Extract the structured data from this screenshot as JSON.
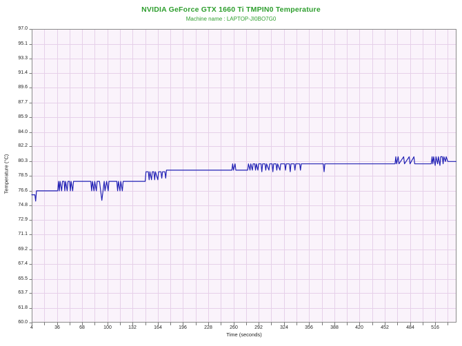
{
  "header": {
    "title": "NVIDIA GeForce GTX 1660 Ti TMPIN0 Temperature",
    "subtitle": "Machine name : LAPTOP-JI0BO7G0"
  },
  "chart_data": {
    "type": "line",
    "title": "NVIDIA GeForce GTX 1660 Ti TMPIN0 Temperature",
    "subtitle": "Machine name : LAPTOP-JI0BO7G0",
    "xlabel": "Time (seconds)",
    "ylabel": "Temperature (°C)",
    "xlim": [
      4,
      543
    ],
    "ylim": [
      60.0,
      97.0
    ],
    "x_tick_labels": [
      4,
      36,
      68,
      100,
      132,
      164,
      196,
      228,
      260,
      292,
      324,
      356,
      388,
      420,
      452,
      484,
      516
    ],
    "y_tick_labels": [
      97.0,
      95.1,
      93.3,
      91.4,
      89.6,
      87.7,
      85.9,
      84.0,
      82.2,
      80.3,
      78.5,
      76.6,
      74.8,
      72.9,
      71.1,
      69.2,
      67.4,
      65.5,
      63.7,
      61.8,
      60.0
    ],
    "x_grid_step_seconds": 16,
    "grid_on": true,
    "legend": "none",
    "colors": {
      "line": "#2020b4",
      "plot_background": "#faf3fb",
      "grid": "#e6d0e9",
      "plot_border": "#8a8a8a",
      "title_green": "#2e9e2e",
      "tick_text": "#222222"
    },
    "series": [
      {
        "name": "TMPIN0",
        "points": [
          [
            4,
            76.1
          ],
          [
            8,
            76.1
          ],
          [
            9,
            75.3
          ],
          [
            10,
            76.6
          ],
          [
            37,
            76.6
          ],
          [
            38,
            77.8
          ],
          [
            39,
            76.6
          ],
          [
            40,
            77.8
          ],
          [
            42,
            76.6
          ],
          [
            43,
            77.8
          ],
          [
            45,
            77.8
          ],
          [
            46,
            76.6
          ],
          [
            47,
            77.8
          ],
          [
            49,
            76.6
          ],
          [
            50,
            77.8
          ],
          [
            52,
            77.8
          ],
          [
            53,
            76.6
          ],
          [
            54,
            77.8
          ],
          [
            56,
            76.6
          ],
          [
            57,
            77.8
          ],
          [
            79,
            77.8
          ],
          [
            80,
            76.6
          ],
          [
            81,
            77.8
          ],
          [
            83,
            76.6
          ],
          [
            84,
            77.8
          ],
          [
            86,
            76.6
          ],
          [
            87,
            77.8
          ],
          [
            90,
            77.8
          ],
          [
            93,
            75.4
          ],
          [
            96,
            77.8
          ],
          [
            97,
            76.6
          ],
          [
            99,
            77.8
          ],
          [
            101,
            76.6
          ],
          [
            102,
            77.8
          ],
          [
            112,
            77.8
          ],
          [
            113,
            76.6
          ],
          [
            114,
            77.8
          ],
          [
            116,
            76.6
          ],
          [
            117,
            77.8
          ],
          [
            119,
            76.6
          ],
          [
            120,
            77.8
          ],
          [
            148,
            77.8
          ],
          [
            149,
            79.0
          ],
          [
            152,
            79.0
          ],
          [
            153,
            78.0
          ],
          [
            154,
            79.0
          ],
          [
            156,
            78.0
          ],
          [
            157,
            79.0
          ],
          [
            159,
            79.0
          ],
          [
            160,
            78.0
          ],
          [
            161,
            79.0
          ],
          [
            164,
            78.0
          ],
          [
            165,
            79.0
          ],
          [
            168,
            79.0
          ],
          [
            169,
            78.2
          ],
          [
            170,
            79.0
          ],
          [
            173,
            79.0
          ],
          [
            174,
            78.2
          ],
          [
            175,
            79.2
          ],
          [
            258,
            79.2
          ],
          [
            259,
            80.0
          ],
          [
            260,
            79.2
          ],
          [
            262,
            80.0
          ],
          [
            263,
            79.2
          ],
          [
            278,
            79.2
          ],
          [
            279,
            80.0
          ],
          [
            281,
            79.2
          ],
          [
            282,
            80.0
          ],
          [
            284,
            79.2
          ],
          [
            285,
            80.0
          ],
          [
            287,
            80.0
          ],
          [
            288,
            79.2
          ],
          [
            289,
            80.0
          ],
          [
            291,
            79.2
          ],
          [
            292,
            80.0
          ],
          [
            295,
            80.0
          ],
          [
            296,
            79.0
          ],
          [
            297,
            80.0
          ],
          [
            300,
            80.0
          ],
          [
            301,
            79.2
          ],
          [
            302,
            80.0
          ],
          [
            305,
            79.2
          ],
          [
            306,
            80.0
          ],
          [
            309,
            80.0
          ],
          [
            310,
            79.0
          ],
          [
            311,
            80.0
          ],
          [
            314,
            80.0
          ],
          [
            315,
            79.2
          ],
          [
            316,
            80.0
          ],
          [
            319,
            79.2
          ],
          [
            320,
            80.0
          ],
          [
            325,
            80.0
          ],
          [
            326,
            79.2
          ],
          [
            327,
            80.0
          ],
          [
            331,
            80.0
          ],
          [
            332,
            79.0
          ],
          [
            333,
            80.0
          ],
          [
            337,
            80.0
          ],
          [
            338,
            79.2
          ],
          [
            339,
            80.0
          ],
          [
            344,
            80.0
          ],
          [
            345,
            79.2
          ],
          [
            346,
            80.0
          ],
          [
            374,
            80.0
          ],
          [
            375,
            79.0
          ],
          [
            376,
            80.0
          ],
          [
            465,
            80.0
          ],
          [
            466,
            80.9
          ],
          [
            467,
            80.0
          ],
          [
            469,
            80.9
          ],
          [
            470,
            80.0
          ],
          [
            476,
            80.9
          ],
          [
            477,
            80.0
          ],
          [
            483,
            80.9
          ],
          [
            484,
            80.0
          ],
          [
            489,
            80.9
          ],
          [
            490,
            80.0
          ],
          [
            511,
            80.0
          ],
          [
            512,
            80.9
          ],
          [
            513,
            80.0
          ],
          [
            514,
            80.9
          ],
          [
            516,
            79.8
          ],
          [
            517,
            80.9
          ],
          [
            519,
            80.0
          ],
          [
            520,
            80.9
          ],
          [
            522,
            79.8
          ],
          [
            523,
            80.9
          ],
          [
            525,
            80.9
          ],
          [
            526,
            80.0
          ],
          [
            527,
            80.9
          ],
          [
            529,
            80.3
          ],
          [
            530,
            80.9
          ],
          [
            532,
            80.3
          ],
          [
            543,
            80.3
          ]
        ]
      }
    ]
  }
}
